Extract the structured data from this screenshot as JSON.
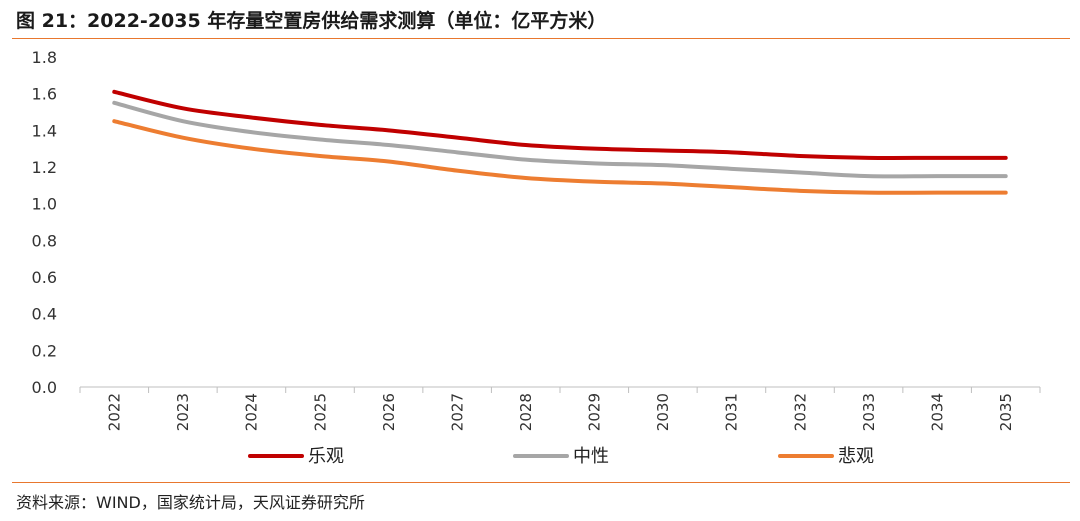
{
  "header": {
    "title": "图 21：2022-2035 年存量空置房供给需求测算（单位：亿平方米）"
  },
  "footer": {
    "source": "资料来源：WIND，国家统计局，天风证券研究所"
  },
  "colors": {
    "accent_rule": "#e8772e",
    "axis": "#bfbfbf"
  },
  "chart_data": {
    "type": "line",
    "title": "图 21：2022-2035 年存量空置房供给需求测算（单位：亿平方米）",
    "xlabel": "",
    "ylabel": "",
    "ylim": [
      0,
      1.8
    ],
    "yticks": [
      "0.0",
      "0.2",
      "0.4",
      "0.6",
      "0.8",
      "1.0",
      "1.2",
      "1.4",
      "1.6",
      "1.8"
    ],
    "grid": false,
    "legend_position": "bottom",
    "categories": [
      "2022",
      "2023",
      "2024",
      "2025",
      "2026",
      "2027",
      "2028",
      "2029",
      "2030",
      "2031",
      "2032",
      "2033",
      "2034",
      "2035"
    ],
    "series": [
      {
        "name": "乐观",
        "color": "#c00000",
        "values": [
          1.61,
          1.52,
          1.47,
          1.43,
          1.4,
          1.36,
          1.32,
          1.3,
          1.29,
          1.28,
          1.26,
          1.25,
          1.25,
          1.25
        ]
      },
      {
        "name": "中性",
        "color": "#a6a6a6",
        "values": [
          1.55,
          1.45,
          1.39,
          1.35,
          1.32,
          1.28,
          1.24,
          1.22,
          1.21,
          1.19,
          1.17,
          1.15,
          1.15,
          1.15
        ]
      },
      {
        "name": "悲观",
        "color": "#ed7d31",
        "values": [
          1.45,
          1.36,
          1.3,
          1.26,
          1.23,
          1.18,
          1.14,
          1.12,
          1.11,
          1.09,
          1.07,
          1.06,
          1.06,
          1.06
        ]
      }
    ]
  }
}
